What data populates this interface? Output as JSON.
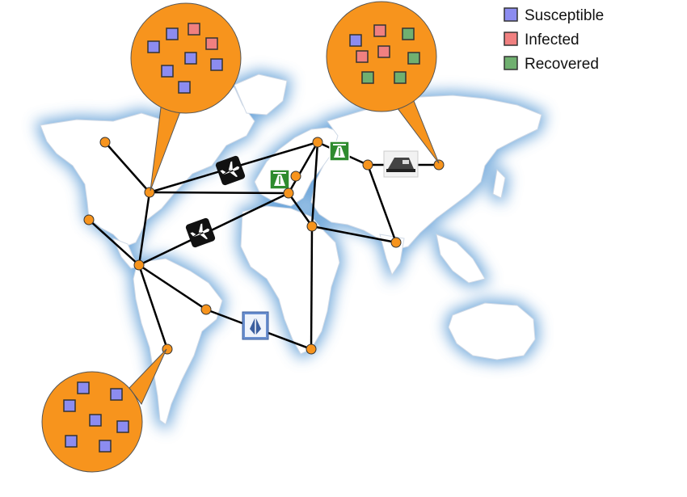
{
  "legend": {
    "items": [
      {
        "label": "Susceptible",
        "color": "#8c8cf0"
      },
      {
        "label": "Infected",
        "color": "#f08080"
      },
      {
        "label": "Recovered",
        "color": "#70b070"
      }
    ]
  },
  "colors": {
    "node": "#f7941d",
    "bubble": "#f7941d",
    "edge": "#000000",
    "land": "#ffffff",
    "glow": "#5b9bd5",
    "highway": "#2e8b2e"
  },
  "transport_icons": [
    "airplane-icon",
    "airplane-icon",
    "highway-icon",
    "highway-icon",
    "train-icon",
    "ship-icon"
  ],
  "populations": {
    "north_america": [
      "S",
      "I",
      "S",
      "I",
      "S",
      "S",
      "S",
      "S"
    ],
    "asia": [
      "S",
      "I",
      "R",
      "I",
      "I",
      "R",
      "R",
      "R"
    ],
    "south_america": [
      "S",
      "S",
      "S",
      "S",
      "S",
      "S",
      "S"
    ]
  }
}
